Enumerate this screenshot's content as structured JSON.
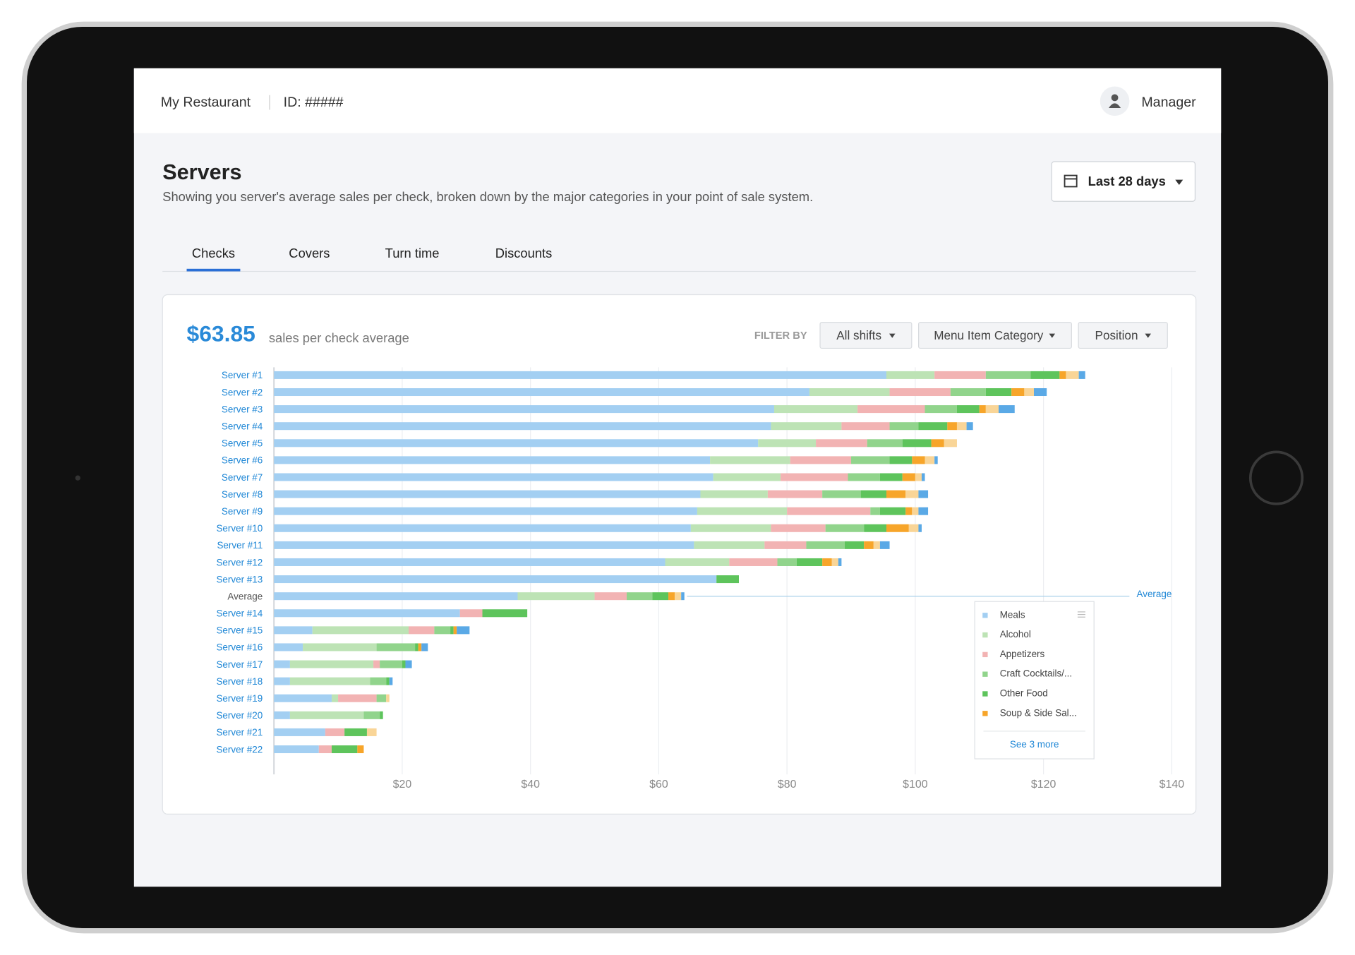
{
  "header": {
    "restaurant": "My Restaurant",
    "id": "ID: #####",
    "user": "Manager"
  },
  "page": {
    "title": "Servers",
    "subtitle": "Showing you server's average sales per check, broken down by the major categories in your point of sale system.",
    "date_range": "Last 28 days"
  },
  "tabs": [
    "Checks",
    "Covers",
    "Turn time",
    "Discounts"
  ],
  "summary": {
    "value": "$63.85",
    "label": "sales per check average"
  },
  "filters": {
    "label": "FILTER BY",
    "options": [
      "All shifts",
      "Menu Item Category",
      "Position"
    ]
  },
  "chart_data": {
    "type": "bar",
    "orientation": "horizontal",
    "stacked": true,
    "categories": [
      "Server #1",
      "Server #2",
      "Server #3",
      "Server #4",
      "Server #5",
      "Server #6",
      "Server #7",
      "Server #8",
      "Server #9",
      "Server #10",
      "Server #11",
      "Server #12",
      "Server #13",
      "Average",
      "Server #14",
      "Server #15",
      "Server #16",
      "Server #17",
      "Server #18",
      "Server #19",
      "Server #20",
      "Server #21",
      "Server #22"
    ],
    "series": [
      {
        "name": "Meals",
        "color": "#a3cff2",
        "values": [
          95.5,
          83.5,
          78,
          77.5,
          75.5,
          68,
          68.5,
          66.5,
          66,
          65,
          65.5,
          61,
          69,
          38,
          29,
          6,
          4.5,
          2.5,
          2.5,
          9,
          2.5,
          8,
          7
        ]
      },
      {
        "name": "Alcohol",
        "color": "#bde3b5",
        "values": [
          7.5,
          12.5,
          13,
          11,
          9,
          12.5,
          10.5,
          10.5,
          14,
          12.5,
          11,
          10,
          0,
          12,
          0,
          15,
          11.5,
          13,
          12.5,
          1,
          11.5,
          0,
          0
        ]
      },
      {
        "name": "Appetizers",
        "color": "#f2b3b3",
        "values": [
          8,
          9.5,
          10.5,
          7.5,
          8,
          9.5,
          10.5,
          8.5,
          13,
          8.5,
          6.5,
          7.5,
          0,
          5,
          3.5,
          4,
          0,
          1,
          0,
          6,
          0,
          3,
          2
        ]
      },
      {
        "name": "Craft Cocktails/...",
        "color": "#91d48c",
        "values": [
          7,
          5.5,
          5,
          4.5,
          5.5,
          6,
          5,
          6,
          1.5,
          6,
          6,
          3,
          0,
          4,
          0,
          2.5,
          6,
          3.5,
          2.5,
          1.5,
          2.5,
          0,
          0
        ]
      },
      {
        "name": "Other Food",
        "color": "#5ec45c",
        "values": [
          4.5,
          4,
          3.5,
          4.5,
          4.5,
          3.5,
          3.5,
          4,
          4,
          3.5,
          3,
          4,
          3.5,
          2.5,
          7,
          0.5,
          0.5,
          0.5,
          0.5,
          0,
          0.5,
          3.5,
          4
        ]
      },
      {
        "name": "Soup & Side Sal...",
        "color": "#f7a52a",
        "values": [
          1,
          2,
          1,
          1.5,
          2,
          2,
          2,
          3,
          1,
          3.5,
          1.5,
          1.5,
          0,
          1,
          0,
          0.5,
          0.5,
          0,
          0,
          0,
          0,
          0,
          1
        ]
      },
      {
        "color": "#f9d597",
        "values": [
          2,
          1.5,
          2,
          1.5,
          2,
          1.5,
          1,
          2,
          1,
          1.5,
          1,
          1,
          0,
          1,
          0,
          0,
          0,
          0,
          0,
          0.5,
          0,
          1.5,
          0
        ]
      },
      {
        "color": "#5aa9e6",
        "values": [
          1,
          2,
          2.5,
          1,
          0,
          0.5,
          0.5,
          1.5,
          1.5,
          0.5,
          1.5,
          0.5,
          0,
          0.5,
          0,
          2,
          1,
          1,
          0.5,
          0,
          0,
          0,
          0
        ]
      }
    ],
    "xlim": [
      0,
      140
    ],
    "xticks": [
      {
        "value": 20,
        "label": "$20"
      },
      {
        "value": 40,
        "label": "$40"
      },
      {
        "value": 60,
        "label": "$60"
      },
      {
        "value": 80,
        "label": "$80"
      },
      {
        "value": 100,
        "label": "$100"
      },
      {
        "value": 120,
        "label": "$120"
      },
      {
        "value": 140,
        "label": "$140"
      }
    ],
    "grid": true,
    "average_label": "Average",
    "legend_more": "See 3 more"
  }
}
